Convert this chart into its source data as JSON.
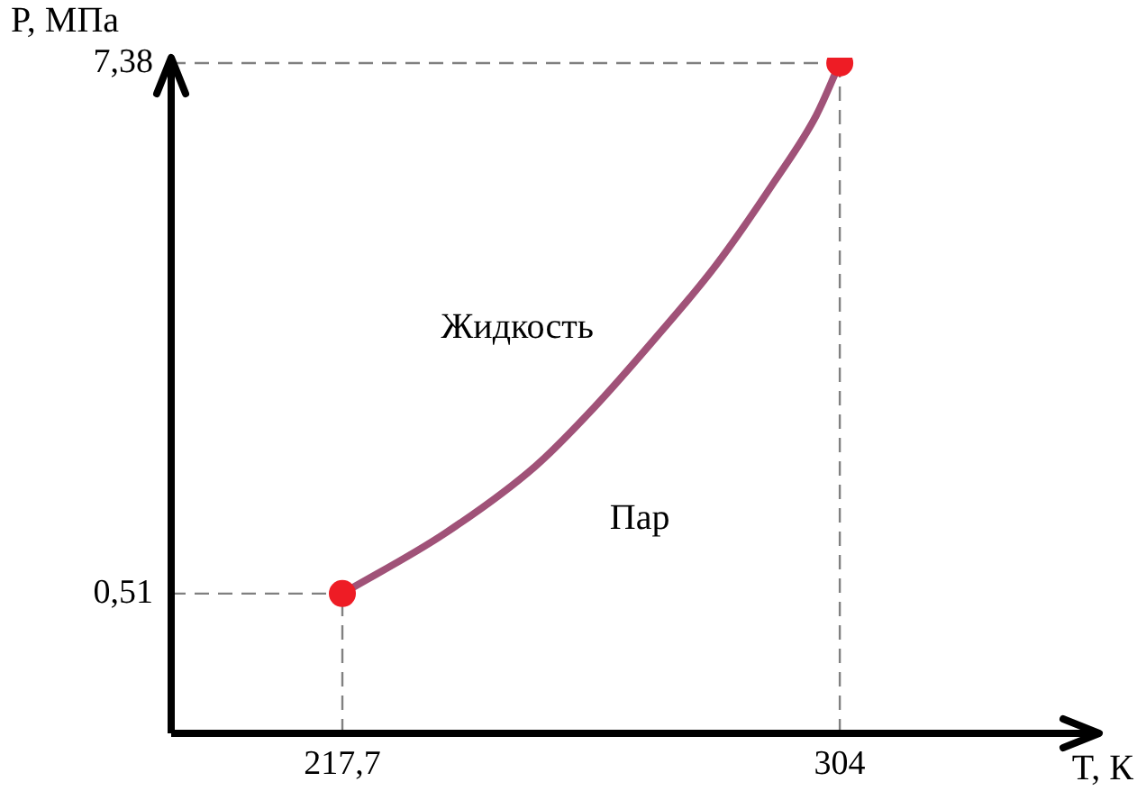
{
  "chart_data": {
    "type": "line",
    "xlabel": "T, К",
    "ylabel": "P, МПа",
    "xlim": [
      188,
      349
    ],
    "ylim": [
      -1.3,
      7.45
    ],
    "xticks": [
      {
        "value": 217.7,
        "label": "217,7"
      },
      304
    ],
    "yticks": [
      {
        "value": 0.51,
        "label": "0,51"
      },
      {
        "value": 7.38,
        "label": "7,38"
      }
    ],
    "grid": false,
    "legend": false,
    "series": [
      {
        "color": "#a05278",
        "marker": "none",
        "x": [
          217.7,
          235.5,
          251.2,
          261.5,
          271.8,
          282.4,
          292.7,
          299.9,
          304
        ],
        "values": [
          0.51,
          1.29,
          2.16,
          2.93,
          3.8,
          4.75,
          5.85,
          6.7,
          7.38
        ]
      },
      {
        "type": "scatter",
        "color": "#ee1c25",
        "marker": "circle",
        "x": [
          217.7,
          304
        ],
        "values": [
          0.51,
          7.38
        ]
      }
    ],
    "ref_lines": [
      {
        "axis": "y",
        "value": 0.51,
        "color": "#808080",
        "line_style": "dashed"
      },
      {
        "axis": "y",
        "value": 7.38,
        "color": "#808080",
        "line_style": "dashed"
      },
      {
        "axis": "x",
        "value": 217.7,
        "color": "#808080",
        "line_style": "dashed"
      },
      {
        "axis": "x",
        "value": 304,
        "color": "#808080",
        "line_style": "dashed"
      }
    ],
    "annotations": [
      "Жидкость",
      "Пар"
    ]
  }
}
